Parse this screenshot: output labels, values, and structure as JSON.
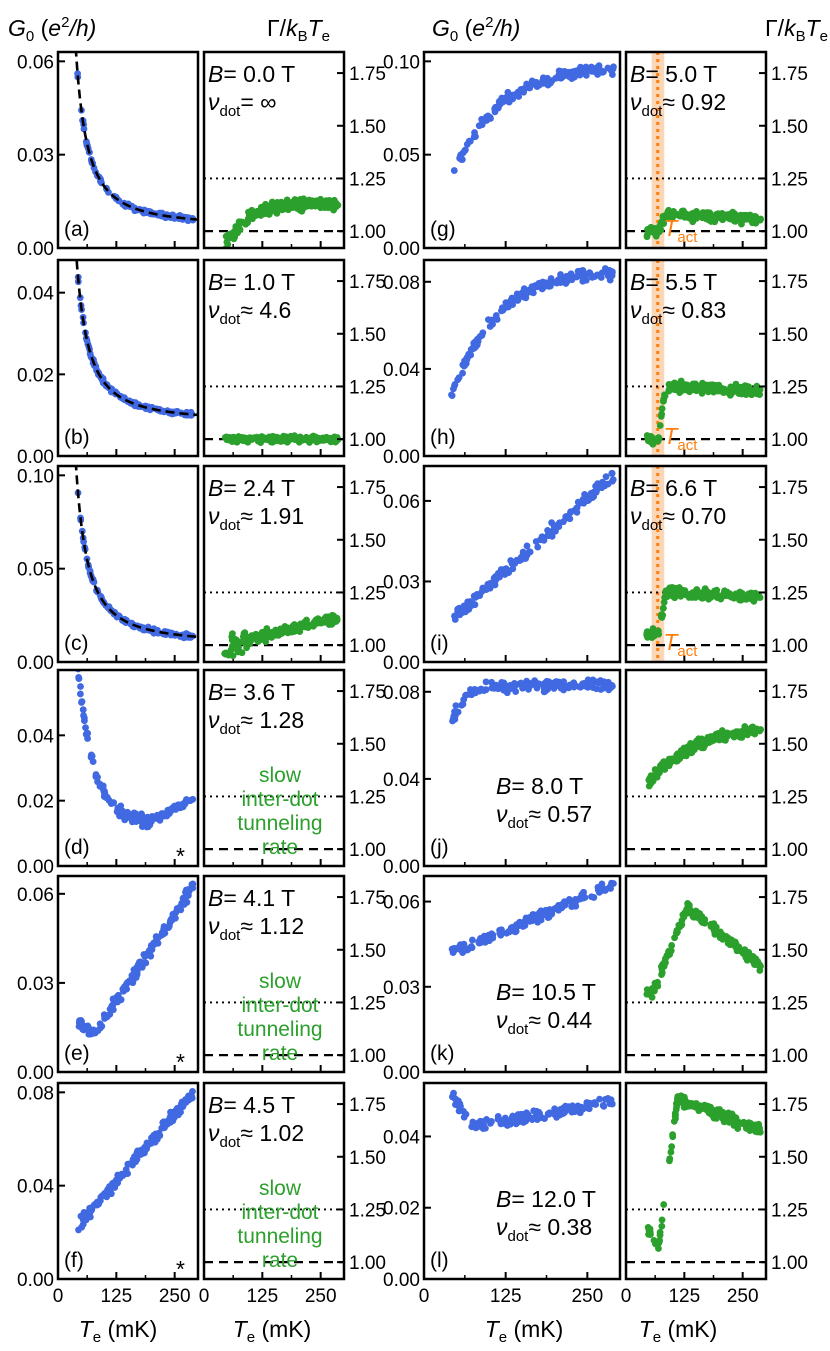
{
  "labels": {
    "g_title": "G",
    "g_sub": "0",
    "g_unit_open": " (",
    "g_unit_e": "e",
    "g_unit_rest": "/h)",
    "gamma_title": "Γ/",
    "gamma_k": "k",
    "gamma_ksub": "B",
    "gamma_t": "T",
    "gamma_tsub": "e",
    "x_t": "T",
    "x_sub": "e",
    "x_unit": " (mK)",
    "tact_t": "T",
    "tact_sub": "act",
    "nu": "ν",
    "nu_sub": "dot",
    "B": "B",
    "star": "*",
    "slow": [
      "slow",
      "inter-dot",
      "tunneling",
      "rate"
    ]
  },
  "colors": {
    "G": "#4169e1",
    "Gamma": "#2ca02c",
    "Tact": "#ff7f0e",
    "Tact_band": "#fbd7b8"
  },
  "x_ticks": [
    "0",
    "125",
    "250"
  ],
  "gamma_ticks": [
    "1.00",
    "1.25",
    "1.50",
    "1.75"
  ],
  "chart_data": [
    {
      "panel": "(a)",
      "B_text": "= 0.0 T",
      "nu_text": "= ∞",
      "g_ylim": [
        0,
        0.063
      ],
      "g_ticks": [
        "0.00",
        "0.03",
        "0.06"
      ],
      "g_tick_vals": [
        0,
        0.03,
        0.06
      ],
      "g_type": "decay",
      "g_a": 0.06,
      "g_b": 0.0068,
      "g_fit": true,
      "gamma_type": "rise",
      "gamma_end": 1.13,
      "has_tact": false,
      "slow": false,
      "star": false,
      "text_top": true
    },
    {
      "panel": "(b)",
      "B_text": "= 1.0 T",
      "nu_text": "≈ 4.6",
      "g_ylim": [
        0,
        0.048
      ],
      "g_ticks": [
        "0.00",
        "0.02",
        "0.04"
      ],
      "g_tick_vals": [
        0,
        0.02,
        0.04
      ],
      "g_type": "decay",
      "g_a": 0.048,
      "g_b": 0.0083,
      "g_fit": true,
      "gamma_type": "flat",
      "gamma_end": 1.0,
      "has_tact": false,
      "slow": false,
      "star": false,
      "text_top": true
    },
    {
      "panel": "(c)",
      "B_text": "= 2.4 T",
      "nu_text": "≈ 1.91",
      "g_ylim": [
        0,
        0.105
      ],
      "g_ticks": [
        "0.00",
        "0.05",
        "0.10"
      ],
      "g_tick_vals": [
        0,
        0.05,
        0.1
      ],
      "g_type": "decay",
      "g_a": 0.1,
      "g_b": 0.0095,
      "g_fit": true,
      "gamma_type": "rise",
      "gamma_end": 1.22,
      "has_tact": false,
      "slow": false,
      "star": false,
      "text_top": true
    },
    {
      "panel": "(d)",
      "B_text": "= 3.6 T",
      "nu_text": "≈ 1.28",
      "g_ylim": [
        0,
        0.06
      ],
      "g_ticks": [
        "0.00",
        "0.02",
        "0.04"
      ],
      "g_tick_vals": [
        0,
        0.02,
        0.04
      ],
      "g_type": "decay_min",
      "g_a": 0.057,
      "g_b": 0.013,
      "g_end": 0.02,
      "g_fit": false,
      "gamma_type": "none",
      "has_tact": false,
      "slow": true,
      "star": true,
      "text_top": true
    },
    {
      "panel": "(e)",
      "B_text": "= 4.1 T",
      "nu_text": "≈ 1.12",
      "g_ylim": [
        0,
        0.066
      ],
      "g_ticks": [
        "0.00",
        "0.03",
        "0.06"
      ],
      "g_tick_vals": [
        0,
        0.03,
        0.06
      ],
      "g_type": "dip_rise",
      "g_start": 0.017,
      "g_min": 0.013,
      "g_end": 0.063,
      "g_fit": false,
      "gamma_type": "none",
      "has_tact": false,
      "slow": true,
      "star": true,
      "text_top": true
    },
    {
      "panel": "(f)",
      "B_text": "= 4.5 T",
      "nu_text": "≈ 1.02",
      "g_ylim": [
        0,
        0.084
      ],
      "g_ticks": [
        "0.00",
        "0.04",
        "0.08"
      ],
      "g_tick_vals": [
        0,
        0.04,
        0.08
      ],
      "g_type": "linear",
      "g_start": 0.022,
      "g_end": 0.08,
      "g_fit": false,
      "gamma_type": "none",
      "has_tact": false,
      "slow": true,
      "star": true,
      "text_top": true
    },
    {
      "panel": "(g)",
      "B_text": "= 5.0 T",
      "nu_text": "≈ 0.92",
      "g_ylim": [
        0,
        0.105
      ],
      "g_ticks": [
        "0.00",
        "0.05",
        "0.10"
      ],
      "g_tick_vals": [
        0,
        0.05,
        0.1
      ],
      "g_type": "sat",
      "g_start": 0.035,
      "g_end": 0.098,
      "g_fit": false,
      "gamma_type": "step",
      "gamma_low": 1.0,
      "gamma_end": 1.08,
      "has_tact": true,
      "slow": false,
      "star": false,
      "text_top": true
    },
    {
      "panel": "(h)",
      "B_text": "= 5.5 T",
      "nu_text": "≈ 0.83",
      "g_ylim": [
        0,
        0.09
      ],
      "g_ticks": [
        "0.00",
        "0.04",
        "0.08"
      ],
      "g_tick_vals": [
        0,
        0.04,
        0.08
      ],
      "g_type": "sat",
      "g_start": 0.026,
      "g_end": 0.086,
      "g_fit": false,
      "gamma_type": "step",
      "gamma_low": 1.0,
      "gamma_end": 1.25,
      "has_tact": true,
      "slow": false,
      "star": false,
      "text_top": true
    },
    {
      "panel": "(i)",
      "B_text": "= 6.6 T",
      "nu_text": "≈ 0.70",
      "g_ylim": [
        0,
        0.073
      ],
      "g_ticks": [
        "0.00",
        "0.03",
        "0.06"
      ],
      "g_tick_vals": [
        0,
        0.03,
        0.06
      ],
      "g_type": "linear",
      "g_start": 0.015,
      "g_end": 0.07,
      "g_fit": false,
      "gamma_type": "step",
      "gamma_low": 1.05,
      "gamma_end": 1.25,
      "has_tact": true,
      "slow": false,
      "star": false,
      "text_top": true
    },
    {
      "panel": "(j)",
      "B_text": "= 8.0 T",
      "nu_text": "≈ 0.57",
      "g_ylim": [
        0,
        0.09
      ],
      "g_ticks": [
        "0.00",
        "0.04",
        "0.08"
      ],
      "g_tick_vals": [
        0,
        0.04,
        0.08
      ],
      "g_type": "sat_fast",
      "g_start": 0.065,
      "g_end": 0.083,
      "g_fit": false,
      "gamma_type": "rise_hi",
      "gamma_start": 1.3,
      "gamma_end": 1.6,
      "has_tact": false,
      "slow": false,
      "star": false,
      "text_top": false
    },
    {
      "panel": "(k)",
      "B_text": "= 10.5 T",
      "nu_text": "≈ 0.44",
      "g_ylim": [
        0,
        0.069
      ],
      "g_ticks": [
        "0.00",
        "0.03",
        "0.06"
      ],
      "g_tick_vals": [
        0,
        0.03,
        0.06
      ],
      "g_type": "linear",
      "g_start": 0.042,
      "g_end": 0.066,
      "g_fit": false,
      "gamma_type": "peak",
      "gamma_start": 1.3,
      "gamma_peak": 1.7,
      "gamma_end": 1.42,
      "has_tact": false,
      "slow": false,
      "star": false,
      "text_top": false
    },
    {
      "panel": "(l)",
      "B_text": "= 12.0 T",
      "nu_text": "≈ 0.38",
      "g_ylim": [
        0,
        0.055
      ],
      "g_ticks": [
        "0.00",
        "0.02",
        "0.04"
      ],
      "g_tick_vals": [
        0,
        0.02,
        0.04
      ],
      "g_type": "dip_rise",
      "g_start": 0.052,
      "g_min": 0.043,
      "g_end": 0.05,
      "g_fit": false,
      "gamma_type": "jump",
      "gamma_start": 1.17,
      "gamma_end": 1.77,
      "has_tact": false,
      "slow": false,
      "star": false,
      "text_top": false
    }
  ]
}
